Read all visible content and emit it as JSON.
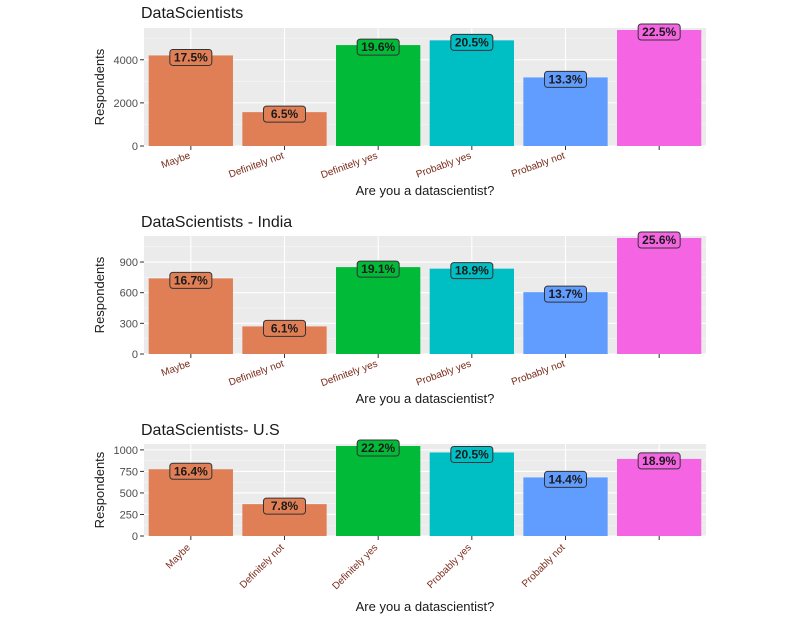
{
  "chart_data": [
    {
      "type": "bar",
      "title": "DataScientists",
      "xlabel": "Are you a datascientist?",
      "ylabel": "Respondents",
      "categories": [
        "Maybe",
        "Definitely not",
        "Definitely yes",
        "Probably yes",
        "Probably not",
        ""
      ],
      "values": [
        4200,
        1570,
        4680,
        4900,
        3180,
        5380
      ],
      "labels": [
        "17.5%",
        "6.5%",
        "19.6%",
        "20.5%",
        "13.3%",
        "22.5%"
      ],
      "colors": [
        "#e07f55",
        "#e07f55",
        "#00ba38",
        "#00bfc4",
        "#619cff",
        "#f564e3"
      ],
      "ylim": [
        0,
        5380
      ],
      "yticks": [
        0,
        2000,
        4000
      ],
      "xtick_rotation": -20
    },
    {
      "type": "bar",
      "title": "DataScientists - India",
      "xlabel": "Are you a datascientist?",
      "ylabel": "Respondents",
      "categories": [
        "Maybe",
        "Definitely not",
        "Definitely yes",
        "Probably yes",
        "Probably not",
        ""
      ],
      "values": [
        740,
        270,
        850,
        835,
        605,
        1135
      ],
      "labels": [
        "16.7%",
        "6.1%",
        "19.1%",
        "18.9%",
        "13.7%",
        "25.6%"
      ],
      "colors": [
        "#e07f55",
        "#e07f55",
        "#00ba38",
        "#00bfc4",
        "#619cff",
        "#f564e3"
      ],
      "ylim": [
        0,
        1135
      ],
      "yticks": [
        0,
        300,
        600,
        900
      ],
      "xtick_rotation": -20
    },
    {
      "type": "bar",
      "title": "DataScientists- U.S",
      "xlabel": "Are you a datascientist?",
      "ylabel": "Respondents",
      "categories": [
        "Maybe",
        "Definitely not",
        "Definitely yes",
        "Probably yes",
        "Probably not",
        ""
      ],
      "values": [
        775,
        370,
        1045,
        970,
        680,
        895
      ],
      "labels": [
        "16.4%",
        "7.8%",
        "22.2%",
        "20.5%",
        "14.4%",
        "18.9%"
      ],
      "colors": [
        "#e07f55",
        "#e07f55",
        "#00ba38",
        "#00bfc4",
        "#619cff",
        "#f564e3"
      ],
      "ylim": [
        0,
        1045
      ],
      "yticks": [
        0,
        250,
        500,
        750,
        1000
      ],
      "xtick_rotation": -45
    }
  ]
}
